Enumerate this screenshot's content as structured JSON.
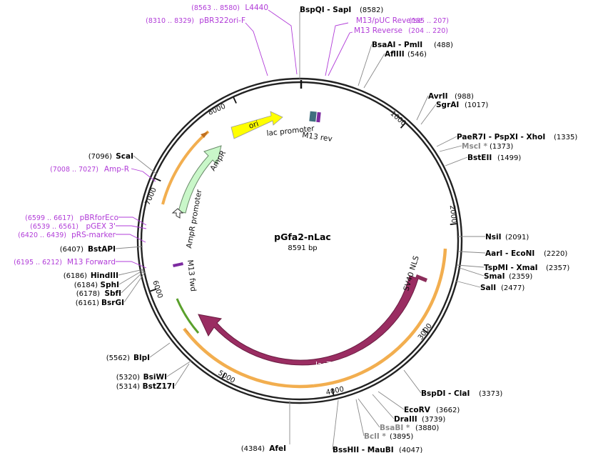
{
  "plasmid": {
    "name": "pGfa2-nLac",
    "length_label": "8591 bp",
    "length": 8591
  },
  "ticks": [
    "1000",
    "2000",
    "3000",
    "4000",
    "5000",
    "6000",
    "7000",
    "8000"
  ],
  "features": [
    {
      "key": "ori",
      "label": "ori",
      "color": "#ffff00"
    },
    {
      "key": "lac_promoter",
      "label": "lac promoter",
      "color": "#3f6f7e"
    },
    {
      "key": "m13_rev",
      "label": "M13 rev",
      "color": "#7c2aa0"
    },
    {
      "key": "ampr",
      "label": "AmpR",
      "color": "#c9f7c9"
    },
    {
      "key": "ampr_promoter",
      "label": "AmpR promoter",
      "color": "#ffffff"
    },
    {
      "key": "m13_fwd",
      "label": "M13 fwd",
      "color": "#7c2aa0"
    },
    {
      "key": "lacz",
      "label": "lacZ",
      "color": "#9a2d62"
    },
    {
      "key": "sv40_nls",
      "label": "SV40 NLS",
      "color": "#8b2d5a"
    }
  ],
  "sites": [
    {
      "name": "BspQI  -  SapI",
      "pos": "(8582)",
      "gray": false
    },
    {
      "name": "BsaAI  -  PmlI",
      "pos": "(488)",
      "gray": false
    },
    {
      "name": "AflIII",
      "pos": "(546)",
      "gray": false
    },
    {
      "name": "AvrII",
      "pos": "(988)",
      "gray": false
    },
    {
      "name": "SgrAI",
      "pos": "(1017)",
      "gray": false
    },
    {
      "name": "PaeR7I  -  PspXI  -  XhoI",
      "pos": "(1335)",
      "gray": false
    },
    {
      "name": "MscI *",
      "pos": "(1373)",
      "gray": true
    },
    {
      "name": "BstEII",
      "pos": "(1499)",
      "gray": false
    },
    {
      "name": "NsiI",
      "pos": "(2091)",
      "gray": false
    },
    {
      "name": "AarI  -  EcoNI",
      "pos": "(2220)",
      "gray": false
    },
    {
      "name": "TspMI  -  XmaI",
      "pos": "(2357)",
      "gray": false
    },
    {
      "name": "SmaI",
      "pos": "(2359)",
      "gray": false
    },
    {
      "name": "SalI",
      "pos": "(2477)",
      "gray": false
    },
    {
      "name": "BspDI  -  ClaI",
      "pos": "(3373)",
      "gray": false
    },
    {
      "name": "EcoRV",
      "pos": "(3662)",
      "gray": false
    },
    {
      "name": "DraIII",
      "pos": "(3739)",
      "gray": false
    },
    {
      "name": "BsaBI *",
      "pos": "(3880)",
      "gray": true
    },
    {
      "name": "BclI *",
      "pos": "(3895)",
      "gray": true
    },
    {
      "name": "BssHII  -  MauBI",
      "pos": "(4047)",
      "gray": false
    },
    {
      "name": "AfeI",
      "pos": "(4384)",
      "gray": false
    },
    {
      "name": "BsiWI",
      "pos": "(5320)",
      "gray": false
    },
    {
      "name": "BstZ17I",
      "pos": "(5314)",
      "gray": false
    },
    {
      "name": "BlpI",
      "pos": "(5562)",
      "gray": false
    },
    {
      "name": "BsrGI",
      "pos": "(6161)",
      "gray": false
    },
    {
      "name": "SbfI",
      "pos": "(6178)",
      "gray": false
    },
    {
      "name": "SphI",
      "pos": "(6184)",
      "gray": false
    },
    {
      "name": "HindIII",
      "pos": "(6186)",
      "gray": false
    },
    {
      "name": "BstAPI",
      "pos": "(6407)",
      "gray": false
    },
    {
      "name": "ScaI",
      "pos": "(7096)",
      "gray": false
    }
  ],
  "primers": [
    {
      "name": "L4440",
      "pos": "(8563 .. 8580)"
    },
    {
      "name": "pBR322ori-F",
      "pos": "(8310 .. 8329)"
    },
    {
      "name": "M13/pUC Reverse",
      "pos": "(185 .. 207)"
    },
    {
      "name": "M13 Reverse",
      "pos": "(204 .. 220)"
    },
    {
      "name": "Amp-R",
      "pos": "(7008 .. 7027)"
    },
    {
      "name": "pBRforEco",
      "pos": "(6599 .. 6617)"
    },
    {
      "name": "pGEX 3'",
      "pos": "(6539 .. 6561)"
    },
    {
      "name": "pRS-marker",
      "pos": "(6420 .. 6439)"
    },
    {
      "name": "M13 Forward",
      "pos": "(6195 .. 6212)"
    }
  ]
}
